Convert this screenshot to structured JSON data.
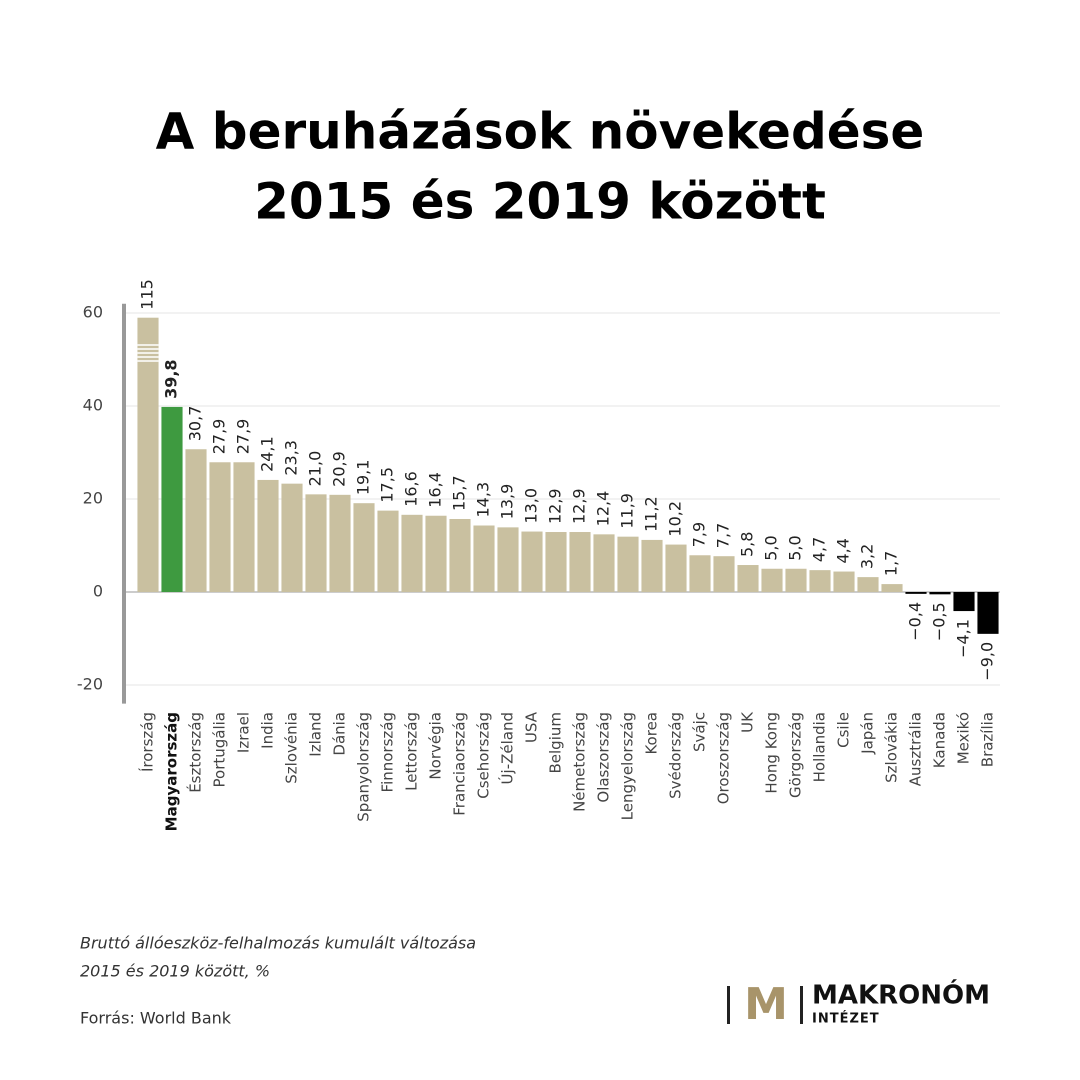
{
  "chart_data": {
    "type": "bar",
    "title": [
      "A beruházások növekedése",
      "2015 és 2019 között"
    ],
    "categories": [
      "Írország",
      "Magyarország",
      "Észtország",
      "Portugália",
      "Izrael",
      "India",
      "Szlovénia",
      "Izland",
      "Dánia",
      "Spanyolország",
      "Finnország",
      "Lettország",
      "Norvégia",
      "Franciaország",
      "Csehország",
      "Új-Zéland",
      "USA",
      "Belgium",
      "Németország",
      "Olaszország",
      "Lengyelország",
      "Korea",
      "Svédország",
      "Svájc",
      "Oroszország",
      "UK",
      "Hong Kong",
      "Görgország",
      "Hollandia",
      "Csile",
      "Japán",
      "Szlovákia",
      "Ausztrália",
      "Kanada",
      "Mexikó",
      "Brazília"
    ],
    "values": [
      115,
      39.8,
      30.7,
      27.9,
      27.9,
      24.1,
      23.3,
      21.0,
      20.9,
      19.1,
      17.5,
      16.6,
      16.4,
      15.7,
      14.3,
      13.9,
      13.0,
      12.9,
      12.9,
      12.4,
      11.9,
      11.2,
      10.2,
      7.9,
      7.7,
      5.8,
      5.0,
      5.0,
      4.7,
      4.4,
      3.2,
      1.7,
      -0.4,
      -0.5,
      -4.1,
      -9.0
    ],
    "value_labels": [
      "115",
      "39,8",
      "30,7",
      "27,9",
      "27,9",
      "24,1",
      "23,3",
      "21,0",
      "20,9",
      "19,1",
      "17,5",
      "16,6",
      "16,4",
      "15,7",
      "14,3",
      "13,9",
      "13,0",
      "12,9",
      "12,9",
      "12,4",
      "11,9",
      "11,2",
      "10,2",
      "7,9",
      "7,7",
      "5,8",
      "5,0",
      "5,0",
      "4,7",
      "4,4",
      "3,2",
      "1,7",
      "−0,4",
      "−0,5",
      "−4,1",
      "−9,0"
    ],
    "color": "#c9c0a0",
    "highlight": "Magyarország",
    "highlight_color": "#3e9a40",
    "negative_color": "#000000",
    "ylim": [
      -24,
      62
    ],
    "yticks": [
      -20,
      0,
      20,
      40,
      60
    ],
    "grid": true,
    "notes": [
      "Bruttó állóeszköz-felhalmozás kumulált változása",
      "2015 és 2019 között, %"
    ],
    "source": "Forrás: World Bank"
  },
  "logo": {
    "letter": "M",
    "name": "MAKRONÓM",
    "sub": "INTÉZET"
  }
}
